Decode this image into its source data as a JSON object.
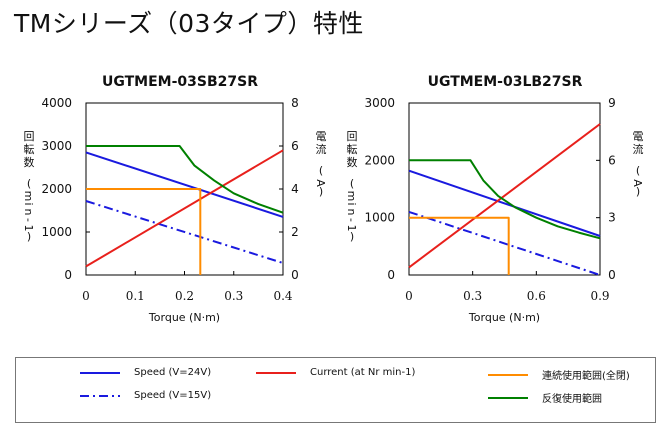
{
  "page": {
    "title": "TMシリーズ（03タイプ）特性"
  },
  "colors": {
    "speed": "#1a1adf",
    "current": "#e8201c",
    "continuous": "#ff8c00",
    "intermittent": "#008000"
  },
  "chart_data": [
    {
      "type": "line",
      "title": "UGTMEM-03SB27SR",
      "xlabel": "Torque (N·m)",
      "ylabel": "回転数 (min-1)",
      "y2label": "電流 (A)",
      "xlim": [
        0,
        0.4
      ],
      "ylim": [
        0,
        4000
      ],
      "y2lim": [
        0,
        8
      ],
      "x_ticks": [
        "0",
        "0.1",
        "0.2",
        "0.3",
        "0.4"
      ],
      "y_ticks": [
        "0",
        "1000",
        "2000",
        "3000",
        "4000"
      ],
      "y2_ticks": [
        "0",
        "2",
        "4",
        "6",
        "8"
      ],
      "grid": false,
      "series": [
        {
          "name": "Speed (V=24V)",
          "axis": "left",
          "style": "solid",
          "color_key": "speed",
          "x": [
            0,
            0.4
          ],
          "y": [
            2850,
            1350
          ]
        },
        {
          "name": "Speed (V=15V)",
          "axis": "left",
          "style": "dashdot",
          "color_key": "speed",
          "x": [
            0,
            0.4
          ],
          "y": [
            1720,
            280
          ]
        },
        {
          "name": "Current (at Nr min-1)",
          "axis": "right",
          "style": "solid",
          "color_key": "current",
          "x": [
            0,
            0.4
          ],
          "y": [
            0.4,
            5.8
          ]
        },
        {
          "name": "連続使用範囲(全閉)",
          "axis": "left",
          "style": "solid",
          "color_key": "continuous",
          "x": [
            0,
            0.232,
            0.232
          ],
          "y": [
            2000,
            2000,
            0
          ]
        },
        {
          "name": "反復使用範囲",
          "axis": "left",
          "style": "solid",
          "color_key": "intermittent",
          "x": [
            0,
            0.19,
            0.22,
            0.26,
            0.3,
            0.35,
            0.4
          ],
          "y": [
            3000,
            3000,
            2550,
            2200,
            1900,
            1650,
            1450
          ]
        }
      ]
    },
    {
      "type": "line",
      "title": "UGTMEM-03LB27SR",
      "xlabel": "Torque (N·m)",
      "ylabel": "回転数 (min-1)",
      "y2label": "電流 (A)",
      "xlim": [
        0,
        0.9
      ],
      "ylim": [
        0,
        3000
      ],
      "y2lim": [
        0,
        9
      ],
      "x_ticks": [
        "0",
        "0.3",
        "0.6",
        "0.9"
      ],
      "y_ticks": [
        "0",
        "1000",
        "2000",
        "3000"
      ],
      "y2_ticks": [
        "0",
        "3",
        "6",
        "9"
      ],
      "grid": false,
      "series": [
        {
          "name": "Speed (V=24V)",
          "axis": "left",
          "style": "solid",
          "color_key": "speed",
          "x": [
            0,
            0.9
          ],
          "y": [
            1820,
            680
          ]
        },
        {
          "name": "Speed (V=15V)",
          "axis": "left",
          "style": "dashdot",
          "color_key": "speed",
          "x": [
            0,
            0.9
          ],
          "y": [
            1100,
            0
          ]
        },
        {
          "name": "Current (at Nr min-1)",
          "axis": "right",
          "style": "solid",
          "color_key": "current",
          "x": [
            0,
            0.9
          ],
          "y": [
            0.4,
            7.9
          ]
        },
        {
          "name": "連続使用範囲(全閉)",
          "axis": "left",
          "style": "solid",
          "color_key": "continuous",
          "x": [
            0,
            0.47,
            0.47
          ],
          "y": [
            1000,
            1000,
            0
          ]
        },
        {
          "name": "反復使用範囲",
          "axis": "left",
          "style": "solid",
          "color_key": "intermittent",
          "x": [
            0,
            0.29,
            0.35,
            0.42,
            0.5,
            0.6,
            0.7,
            0.8,
            0.9
          ],
          "y": [
            2000,
            2000,
            1650,
            1380,
            1180,
            1000,
            850,
            740,
            640
          ]
        }
      ]
    }
  ],
  "legend": {
    "speed_24": "Speed (V=24V)",
    "speed_15": "Speed (V=15V)",
    "current": "Current (at Nr min-1)",
    "continuous": "連続使用範囲(全閉)",
    "intermittent": "反復使用範囲"
  }
}
